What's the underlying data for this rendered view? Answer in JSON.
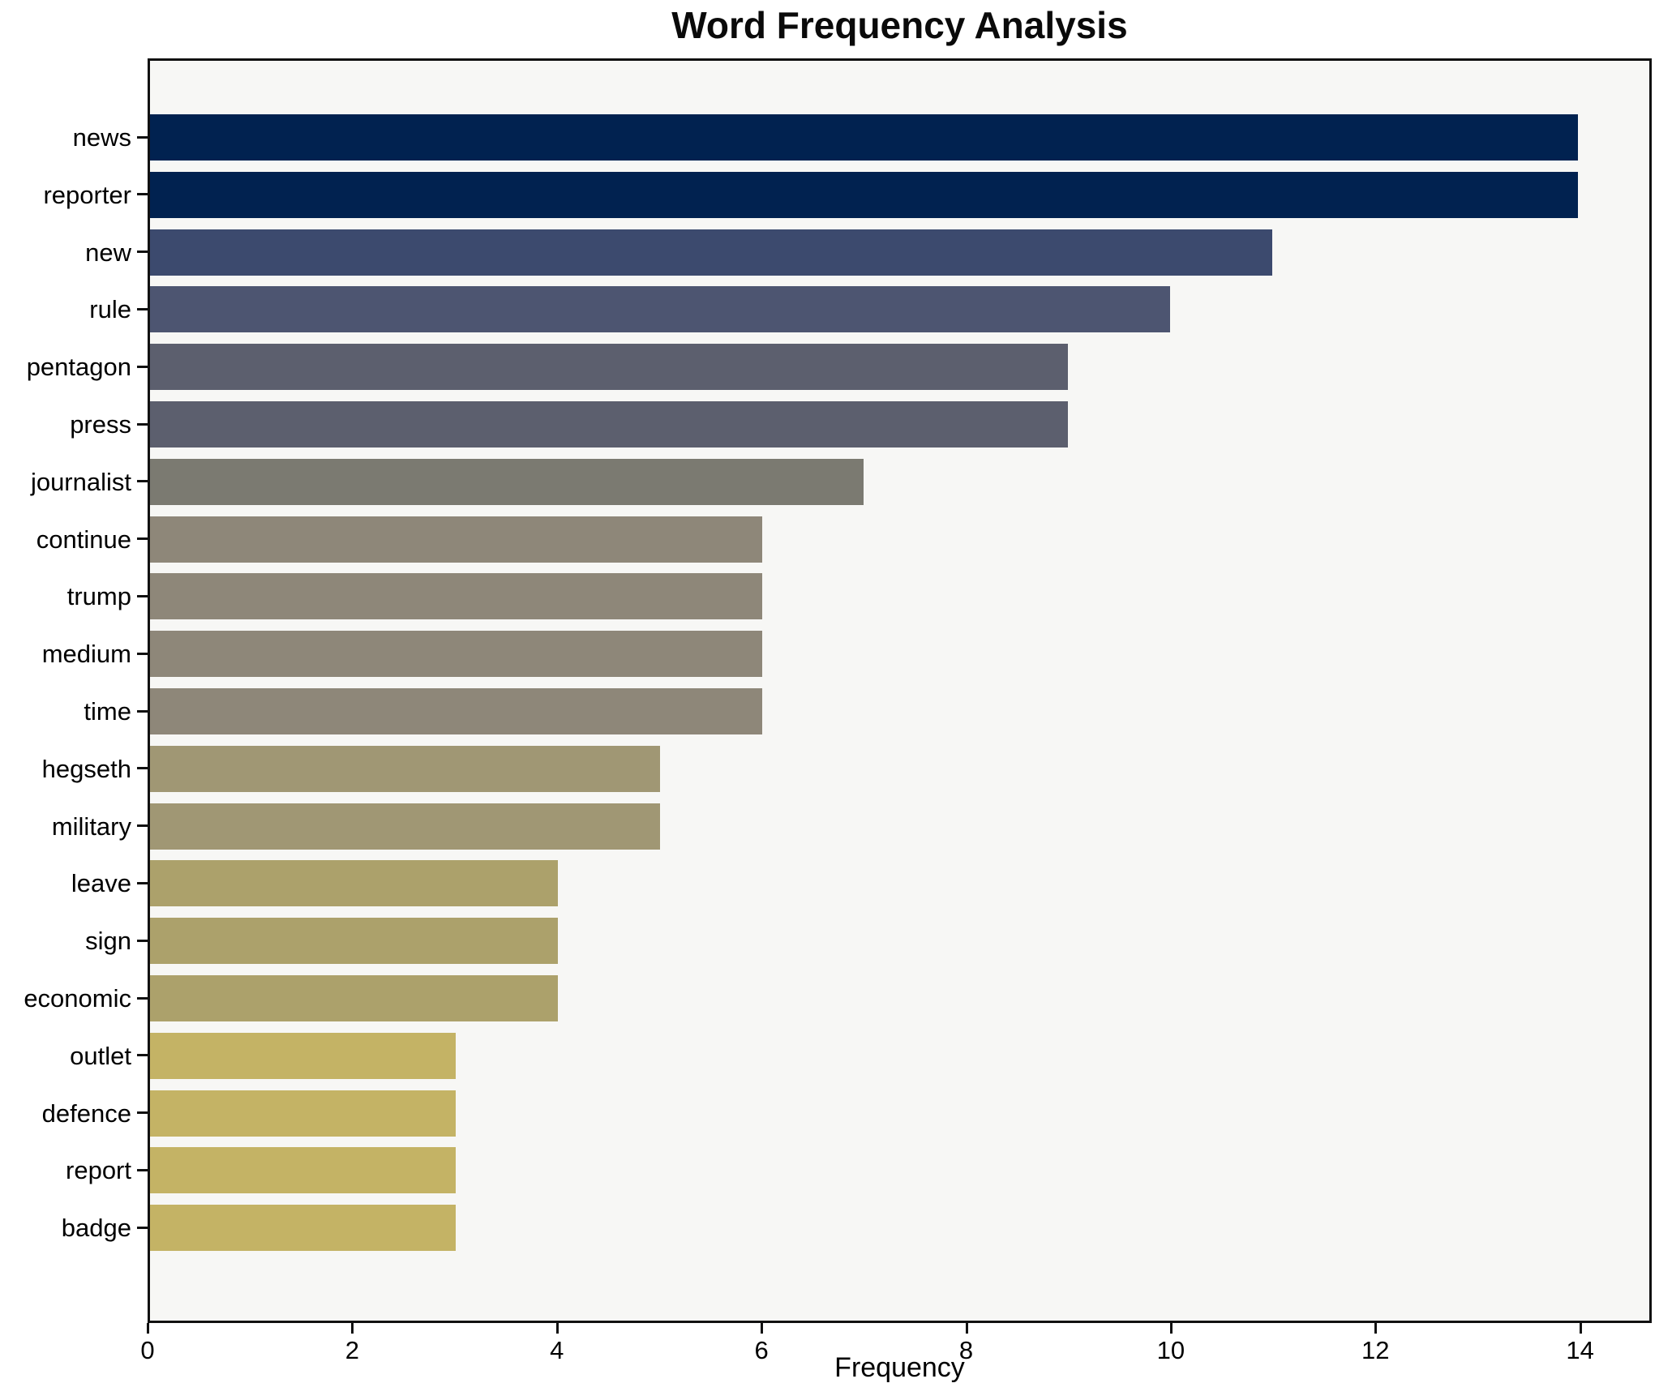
{
  "chart_data": {
    "type": "bar",
    "orientation": "horizontal",
    "title": "Word Frequency Analysis",
    "xlabel": "Frequency",
    "ylabel": "",
    "xlim": [
      0,
      14.7
    ],
    "xticks": [
      0,
      2,
      4,
      6,
      8,
      10,
      12,
      14
    ],
    "grid": false,
    "legend": null,
    "colormap": "cividis-reversed-by-value",
    "plot_bg": "#f7f7f5",
    "figure_bg": "#ffffff",
    "spine_color": "#111111",
    "categories": [
      "news",
      "reporter",
      "new",
      "rule",
      "pentagon",
      "press",
      "journalist",
      "continue",
      "trump",
      "medium",
      "time",
      "hegseth",
      "military",
      "leave",
      "sign",
      "economic",
      "outlet",
      "defence",
      "report",
      "badge"
    ],
    "values": [
      14,
      14,
      11,
      10,
      9,
      9,
      7,
      6,
      6,
      6,
      6,
      5,
      5,
      4,
      4,
      4,
      3,
      3,
      3,
      3
    ],
    "bar_colors": [
      "#012250",
      "#012250",
      "#3c4a6e",
      "#4d5571",
      "#5c5f6e",
      "#5c5f6e",
      "#7b7a71",
      "#8e8779",
      "#8e8779",
      "#8e8779",
      "#8e8779",
      "#a09774",
      "#a09774",
      "#aca16b",
      "#aca16b",
      "#aca16b",
      "#c4b365",
      "#c4b365",
      "#c4b365",
      "#c4b365"
    ]
  }
}
